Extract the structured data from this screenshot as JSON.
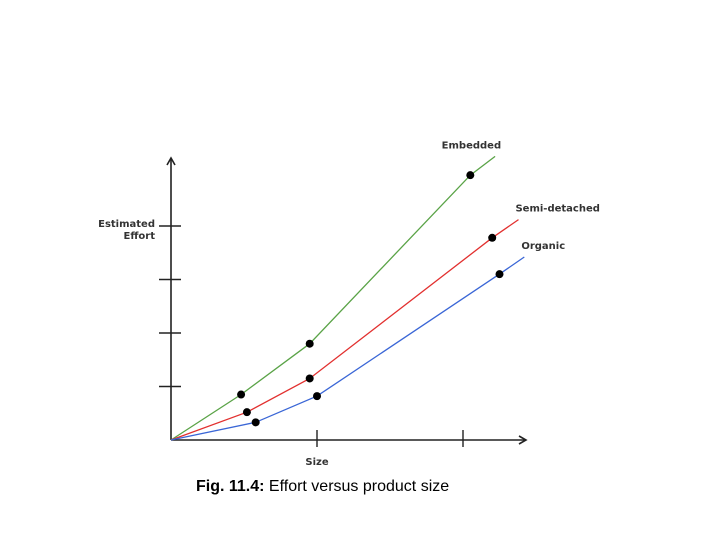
{
  "chart_data": {
    "type": "line",
    "xlabel": "Size",
    "ylabel": "Estimated Effort",
    "xlim": [
      0,
      3
    ],
    "ylim": [
      0,
      5
    ],
    "x_ticks": [
      1,
      2
    ],
    "y_ticks": [
      1,
      2,
      3,
      4
    ],
    "series": [
      {
        "name": "Embedded",
        "color": "#5aa347",
        "label_anchor": "end",
        "x": [
          0,
          0.48,
          0.95,
          2.05,
          2.22
        ],
        "y": [
          0,
          0.85,
          1.8,
          4.95,
          5.3
        ],
        "points": [
          [
            0.48,
            0.85
          ],
          [
            0.95,
            1.8
          ],
          [
            2.05,
            4.95
          ]
        ]
      },
      {
        "name": "Semi-detached",
        "color": "#e2302f",
        "label_anchor": "start",
        "x": [
          0,
          0.52,
          0.95,
          2.2,
          2.38
        ],
        "y": [
          0,
          0.52,
          1.15,
          3.78,
          4.12
        ],
        "points": [
          [
            0.52,
            0.52
          ],
          [
            0.95,
            1.15
          ],
          [
            2.2,
            3.78
          ]
        ]
      },
      {
        "name": "Organic",
        "color": "#3a66d6",
        "label_anchor": "start",
        "x": [
          0,
          0.58,
          1.0,
          2.25,
          2.42
        ],
        "y": [
          0,
          0.33,
          0.82,
          3.1,
          3.42
        ],
        "points": [
          [
            0.58,
            0.33
          ],
          [
            1.0,
            0.82
          ],
          [
            2.25,
            3.1
          ]
        ]
      }
    ]
  },
  "caption": {
    "fig_label": "Fig. 11.4:",
    "text": " Effort versus product size"
  }
}
